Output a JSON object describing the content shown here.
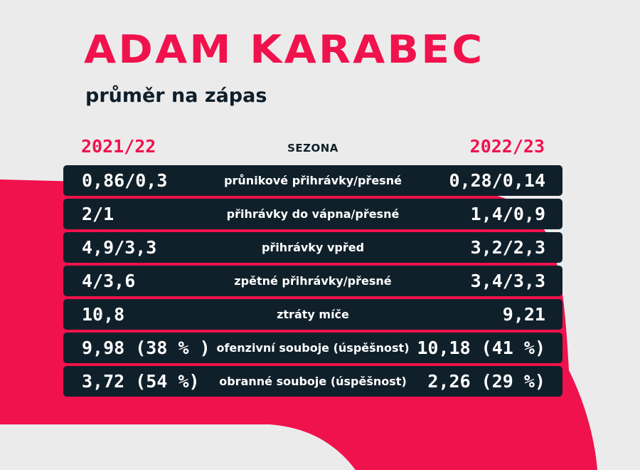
{
  "title": "ADAM KARABEC",
  "subtitle": "průměr na zápas",
  "header": {
    "left": "2021/22",
    "center": "SEZONA",
    "right": "2022/23"
  },
  "rows": [
    {
      "left": "0,86/0,3",
      "label": "průnikové přihrávky/přesné",
      "right": "0,28/0,14"
    },
    {
      "left": "2/1",
      "label": "přihrávky do vápna/přesné",
      "right": "1,4/0,9"
    },
    {
      "left": "4,9/3,3",
      "label": "přihrávky vpřed",
      "right": "3,2/2,3"
    },
    {
      "left": "4/3,6",
      "label": "zpětné přihrávky/přesné",
      "right": "3,4/3,3"
    },
    {
      "left": "10,8",
      "label": "ztráty míče",
      "right": "9,21"
    },
    {
      "left": "9,98 (38 % )",
      "label": "ofenzivní souboje (úspěšnost)",
      "right": "10,18 (41 %)"
    },
    {
      "left": "3,72 (54 %)",
      "label": "obranné souboje (úspěšnost)",
      "right": "2,26 (29 %)"
    }
  ],
  "colors": {
    "accent": "#f0124c",
    "dark": "#10202b",
    "background": "#ecebec"
  }
}
